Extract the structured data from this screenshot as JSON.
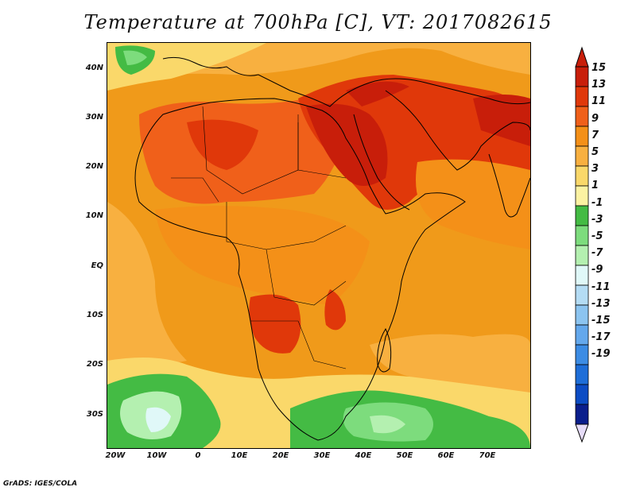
{
  "title": "Temperature at 700hPa [C], VT: 2017082615",
  "footer": "GrADS: IGES/COLA",
  "axes": {
    "lat_labels": [
      "40N",
      "30N",
      "20N",
      "10N",
      "EQ",
      "10S",
      "20S",
      "30S"
    ],
    "lon_labels": [
      "20W",
      "10W",
      "0",
      "10E",
      "20E",
      "30E",
      "40E",
      "50E",
      "60E",
      "70E"
    ]
  },
  "colorbar": {
    "labels": [
      "15",
      "13",
      "11",
      "9",
      "7",
      "5",
      "3",
      "1",
      "-1",
      "-3",
      "-5",
      "-7",
      "-9",
      "-11",
      "-13",
      "-15",
      "-17",
      "-19"
    ],
    "colors": [
      "#c81e0a",
      "#e0380a",
      "#f0601a",
      "#f49018",
      "#f8b040",
      "#fad86a",
      "#fcf2a2",
      "#44bb44",
      "#7ddc7d",
      "#b4f0b0",
      "#e0f8f8",
      "#b4dcf4",
      "#8cc4f0",
      "#64a8ec",
      "#3c8ce4",
      "#1e6ed8",
      "#0c4cc4",
      "#0a1e8c"
    ],
    "top_arrow_color": "#c81e0a",
    "bottom_arrow_color": "#e6dcf8"
  },
  "map": {
    "variable": "Temperature",
    "level": "700hPa",
    "units": "C",
    "valid_time": "2017082615",
    "domain_lon": [
      -22,
      80
    ],
    "domain_lat": [
      -37,
      45
    ]
  }
}
